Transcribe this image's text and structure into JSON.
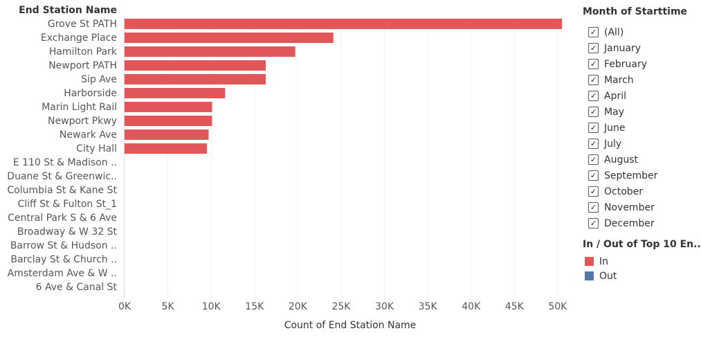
{
  "chart_data": {
    "type": "bar",
    "orientation": "horizontal",
    "row_header": "End Station Name",
    "xlabel": "Count of End Station Name",
    "xlim": [
      0,
      52000
    ],
    "xticks": [
      "0K",
      "5K",
      "10K",
      "15K",
      "20K",
      "25K",
      "30K",
      "35K",
      "40K",
      "45K",
      "50K"
    ],
    "xtick_values": [
      0,
      5000,
      10000,
      15000,
      20000,
      25000,
      30000,
      35000,
      40000,
      45000,
      50000
    ],
    "grid": true,
    "categories": [
      "Grove St PATH",
      "Exchange Place",
      "Hamilton Park",
      "Newport PATH",
      "Sip Ave",
      "Harborside",
      "Marin Light Rail",
      "Newport Pkwy",
      "Newark Ave",
      "City Hall",
      "E 110 St & Madison ..",
      "Duane St & Greenwic..",
      "Columbia St & Kane St",
      "Cliff St & Fulton St_1",
      "Central Park S & 6 Ave",
      "Broadway & W 32 St",
      "Barrow St & Hudson ..",
      "Barclay St & Church ..",
      "Amsterdam Ave & W ..",
      "6 Ave & Canal St"
    ],
    "values": [
      50500,
      24100,
      19700,
      16300,
      16300,
      11600,
      10100,
      10100,
      9700,
      9500,
      1,
      1,
      1,
      1,
      1,
      1,
      1,
      1,
      1,
      1
    ],
    "bar_color": "#e15759"
  },
  "filter": {
    "title": "Month of Starttime",
    "items": [
      "(All)",
      "January",
      "February",
      "March",
      "April",
      "May",
      "June",
      "July",
      "August",
      "September",
      "October",
      "November",
      "December"
    ],
    "checked": "✓"
  },
  "legend": {
    "title": "In / Out of Top 10 En..",
    "items": [
      {
        "label": "In",
        "color": "#e15759"
      },
      {
        "label": "Out",
        "color": "#4e79a7"
      }
    ]
  }
}
